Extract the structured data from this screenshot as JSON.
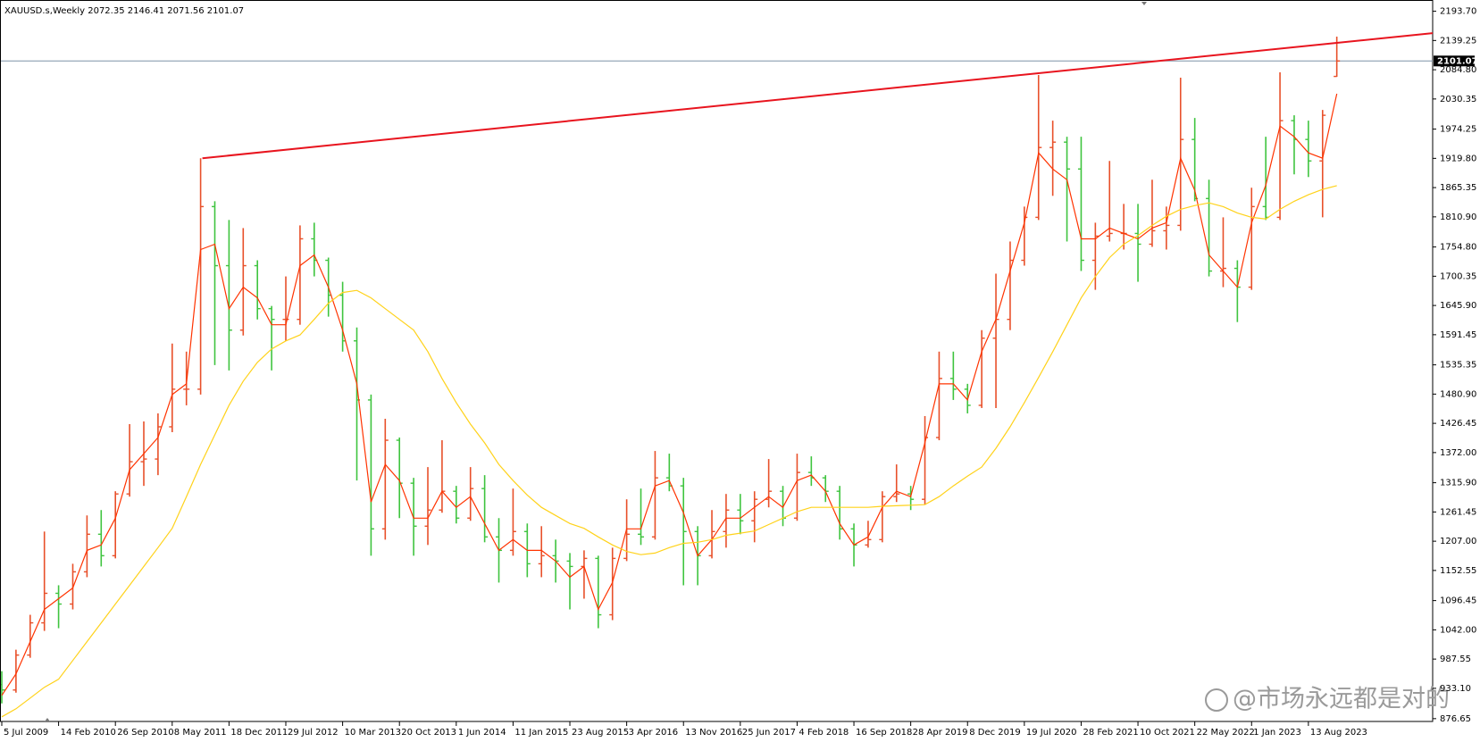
{
  "chart_data": {
    "type": "ohlc",
    "header": "XAUUSD.s,Weekly  2072.35 2146.41 2071.56 2101.07",
    "watermark": "@市场永远都是对的",
    "up_color": "#e8502a",
    "down_color": "#3fc43f",
    "x": [
      "2009-07-05",
      "2009-08-30",
      "2009-10-25",
      "2009-12-20",
      "2010-02-14",
      "2010-04-11",
      "2010-06-06",
      "2010-08-01",
      "2010-09-26",
      "2010-11-21",
      "2011-01-16",
      "2011-03-13",
      "2011-05-08",
      "2011-07-03",
      "2011-08-28",
      "2011-10-23",
      "2011-12-18",
      "2012-02-12",
      "2012-04-08",
      "2012-06-03",
      "2012-07-29",
      "2012-09-23",
      "2012-11-18",
      "2013-01-13",
      "2013-03-10",
      "2013-05-05",
      "2013-06-30",
      "2013-08-25",
      "2013-10-20",
      "2013-12-15",
      "2014-02-09",
      "2014-04-06",
      "2014-06-01",
      "2014-07-27",
      "2014-09-21",
      "2014-11-16",
      "2015-01-11",
      "2015-03-08",
      "2015-05-03",
      "2015-06-28",
      "2015-08-23",
      "2015-10-18",
      "2015-12-13",
      "2016-02-07",
      "2016-04-03",
      "2016-05-29",
      "2016-07-24",
      "2016-09-18",
      "2016-11-13",
      "2017-01-08",
      "2017-03-05",
      "2017-04-30",
      "2017-06-25",
      "2017-08-20",
      "2017-10-15",
      "2017-12-10",
      "2018-02-04",
      "2018-04-01",
      "2018-05-27",
      "2018-07-22",
      "2018-09-16",
      "2018-11-11",
      "2019-01-06",
      "2019-03-03",
      "2019-04-28",
      "2019-06-23",
      "2019-08-18",
      "2019-10-13",
      "2019-12-08",
      "2020-02-02",
      "2020-03-29",
      "2020-05-24",
      "2020-07-19",
      "2020-09-13",
      "2020-11-08",
      "2021-01-03",
      "2021-02-28",
      "2021-04-25",
      "2021-06-20",
      "2021-08-15",
      "2021-10-10",
      "2021-12-05",
      "2022-01-30",
      "2022-03-27",
      "2022-05-22",
      "2022-07-17",
      "2022-09-11",
      "2022-11-06",
      "2023-01-01",
      "2023-02-26",
      "2023-04-23",
      "2023-06-18",
      "2023-08-13",
      "2023-10-08",
      "2023-12-03"
    ],
    "ohlc": [
      [
        940,
        965,
        905,
        930
      ],
      [
        930,
        1005,
        925,
        995
      ],
      [
        995,
        1070,
        990,
        1055
      ],
      [
        1055,
        1225,
        1040,
        1110
      ],
      [
        1110,
        1125,
        1045,
        1090
      ],
      [
        1090,
        1165,
        1080,
        1150
      ],
      [
        1150,
        1255,
        1140,
        1220
      ],
      [
        1220,
        1265,
        1160,
        1180
      ],
      [
        1180,
        1300,
        1175,
        1295
      ],
      [
        1295,
        1425,
        1290,
        1355
      ],
      [
        1355,
        1430,
        1310,
        1360
      ],
      [
        1360,
        1445,
        1330,
        1420
      ],
      [
        1420,
        1575,
        1410,
        1490
      ],
      [
        1490,
        1560,
        1460,
        1490
      ],
      [
        1490,
        1920,
        1480,
        1830
      ],
      [
        1830,
        1840,
        1535,
        1720
      ],
      [
        1720,
        1805,
        1525,
        1600
      ],
      [
        1600,
        1790,
        1590,
        1720
      ],
      [
        1720,
        1730,
        1620,
        1640
      ],
      [
        1640,
        1645,
        1525,
        1620
      ],
      [
        1620,
        1700,
        1580,
        1620
      ],
      [
        1620,
        1795,
        1610,
        1770
      ],
      [
        1770,
        1800,
        1700,
        1730
      ],
      [
        1730,
        1735,
        1625,
        1665
      ],
      [
        1665,
        1690,
        1560,
        1580
      ],
      [
        1580,
        1605,
        1320,
        1470
      ],
      [
        1470,
        1480,
        1180,
        1230
      ],
      [
        1230,
        1435,
        1210,
        1395
      ],
      [
        1395,
        1400,
        1250,
        1315
      ],
      [
        1315,
        1325,
        1180,
        1235
      ],
      [
        1235,
        1345,
        1200,
        1265
      ],
      [
        1265,
        1395,
        1260,
        1300
      ],
      [
        1300,
        1310,
        1240,
        1250
      ],
      [
        1250,
        1345,
        1245,
        1305
      ],
      [
        1305,
        1330,
        1205,
        1215
      ],
      [
        1215,
        1250,
        1130,
        1190
      ],
      [
        1190,
        1305,
        1180,
        1225
      ],
      [
        1225,
        1240,
        1140,
        1165
      ],
      [
        1165,
        1235,
        1140,
        1180
      ],
      [
        1180,
        1210,
        1130,
        1170
      ],
      [
        1170,
        1185,
        1080,
        1160
      ],
      [
        1160,
        1190,
        1100,
        1175
      ],
      [
        1175,
        1180,
        1045,
        1070
      ],
      [
        1070,
        1195,
        1060,
        1175
      ],
      [
        1175,
        1285,
        1170,
        1220
      ],
      [
        1220,
        1305,
        1200,
        1215
      ],
      [
        1215,
        1375,
        1210,
        1325
      ],
      [
        1325,
        1370,
        1300,
        1310
      ],
      [
        1310,
        1325,
        1125,
        1225
      ],
      [
        1225,
        1235,
        1125,
        1180
      ],
      [
        1180,
        1265,
        1175,
        1225
      ],
      [
        1225,
        1295,
        1195,
        1265
      ],
      [
        1265,
        1295,
        1220,
        1245
      ],
      [
        1245,
        1300,
        1205,
        1285
      ],
      [
        1285,
        1360,
        1270,
        1300
      ],
      [
        1300,
        1310,
        1235,
        1250
      ],
      [
        1250,
        1370,
        1245,
        1335
      ],
      [
        1335,
        1365,
        1310,
        1325
      ],
      [
        1325,
        1330,
        1280,
        1300
      ],
      [
        1300,
        1310,
        1210,
        1230
      ],
      [
        1230,
        1240,
        1160,
        1200
      ],
      [
        1200,
        1245,
        1195,
        1210
      ],
      [
        1210,
        1300,
        1205,
        1290
      ],
      [
        1290,
        1350,
        1280,
        1295
      ],
      [
        1295,
        1310,
        1265,
        1285
      ],
      [
        1285,
        1440,
        1275,
        1400
      ],
      [
        1400,
        1560,
        1395,
        1510
      ],
      [
        1510,
        1560,
        1470,
        1490
      ],
      [
        1490,
        1500,
        1445,
        1460
      ],
      [
        1460,
        1600,
        1455,
        1585
      ],
      [
        1585,
        1705,
        1455,
        1620
      ],
      [
        1620,
        1765,
        1600,
        1730
      ],
      [
        1730,
        1830,
        1720,
        1810
      ],
      [
        1810,
        2075,
        1805,
        1940
      ],
      [
        1940,
        1990,
        1850,
        1950
      ],
      [
        1950,
        1960,
        1765,
        1900
      ],
      [
        1900,
        1960,
        1710,
        1730
      ],
      [
        1730,
        1800,
        1675,
        1775
      ],
      [
        1775,
        1915,
        1765,
        1780
      ],
      [
        1780,
        1835,
        1750,
        1780
      ],
      [
        1780,
        1835,
        1690,
        1760
      ],
      [
        1760,
        1880,
        1755,
        1785
      ],
      [
        1785,
        1830,
        1750,
        1795
      ],
      [
        1795,
        2070,
        1785,
        1955
      ],
      [
        1955,
        1995,
        1840,
        1845
      ],
      [
        1845,
        1880,
        1700,
        1710
      ],
      [
        1710,
        1810,
        1680,
        1715
      ],
      [
        1715,
        1730,
        1615,
        1680
      ],
      [
        1680,
        1865,
        1675,
        1830
      ],
      [
        1830,
        1960,
        1805,
        1810
      ],
      [
        1810,
        2080,
        1805,
        1990
      ],
      [
        1990,
        2000,
        1890,
        1955
      ],
      [
        1955,
        1990,
        1885,
        1915
      ],
      [
        1915,
        2010,
        1810,
        2000
      ],
      [
        2072.35,
        2146.41,
        2071.56,
        2101.07
      ]
    ],
    "lines": [
      {
        "color": "#ff3300",
        "values": [
          920,
          960,
          1020,
          1080,
          1100,
          1120,
          1190,
          1200,
          1250,
          1340,
          1370,
          1400,
          1480,
          1500,
          1750,
          1760,
          1640,
          1680,
          1660,
          1610,
          1610,
          1720,
          1740,
          1680,
          1600,
          1500,
          1280,
          1350,
          1320,
          1250,
          1250,
          1300,
          1270,
          1290,
          1240,
          1190,
          1210,
          1190,
          1190,
          1170,
          1140,
          1160,
          1080,
          1130,
          1230,
          1230,
          1310,
          1320,
          1260,
          1180,
          1210,
          1250,
          1250,
          1270,
          1290,
          1270,
          1320,
          1330,
          1300,
          1240,
          1200,
          1215,
          1270,
          1300,
          1290,
          1390,
          1500,
          1500,
          1470,
          1560,
          1620,
          1710,
          1800,
          1930,
          1900,
          1880,
          1770,
          1770,
          1790,
          1780,
          1770,
          1790,
          1800,
          1920,
          1860,
          1740,
          1710,
          1680,
          1800,
          1870,
          1980,
          1960,
          1930,
          1920,
          2040
        ]
      },
      {
        "color": "#ffd21a",
        "values": [
          880,
          895,
          915,
          935,
          950,
          985,
          1020,
          1055,
          1090,
          1125,
          1160,
          1195,
          1231,
          1290,
          1350,
          1405,
          1460,
          1505,
          1540,
          1565,
          1580,
          1591,
          1620,
          1650,
          1670,
          1674,
          1660,
          1640,
          1620,
          1600,
          1560,
          1510,
          1465,
          1425,
          1390,
          1350,
          1320,
          1293,
          1270,
          1255,
          1240,
          1231,
          1215,
          1200,
          1188,
          1182,
          1185,
          1195,
          1203,
          1205,
          1210,
          1218,
          1222,
          1226,
          1238,
          1250,
          1262,
          1270,
          1270,
          1270,
          1270,
          1270,
          1272,
          1273,
          1274,
          1275,
          1290,
          1310,
          1328,
          1345,
          1380,
          1420,
          1465,
          1512,
          1560,
          1610,
          1660,
          1700,
          1735,
          1760,
          1776,
          1795,
          1812,
          1825,
          1832,
          1837,
          1830,
          1818,
          1810,
          1807,
          1825,
          1840,
          1852,
          1862,
          1869
        ]
      }
    ],
    "trendline": {
      "color": "#e8141e",
      "x": [
        "2011-09-04",
        "2024-12-15"
      ],
      "values": [
        1920,
        2153
      ]
    },
    "hline": {
      "color": "#7f93a8",
      "value": 2101.07
    },
    "xlim": [
      "2009-06-28",
      "2024-12-15"
    ],
    "ylim": [
      871.4,
      2211.3
    ],
    "xticks": [
      {
        "value": "2009-07-05",
        "label": "5 Jul 2009"
      },
      {
        "value": "2010-02-14",
        "label": "14 Feb 2010"
      },
      {
        "value": "2010-09-26",
        "label": "26 Sep 2010"
      },
      {
        "value": "2011-05-08",
        "label": "8 May 2011"
      },
      {
        "value": "2011-12-18",
        "label": "18 Dec 2011"
      },
      {
        "value": "2012-07-29",
        "label": "29 Jul 2012"
      },
      {
        "value": "2013-03-10",
        "label": "10 Mar 2013"
      },
      {
        "value": "2013-10-20",
        "label": "20 Oct 2013"
      },
      {
        "value": "2014-06-01",
        "label": "1 Jun 2014"
      },
      {
        "value": "2015-01-11",
        "label": "11 Jan 2015"
      },
      {
        "value": "2015-08-23",
        "label": "23 Aug 2015"
      },
      {
        "value": "2016-04-03",
        "label": "3 Apr 2016"
      },
      {
        "value": "2016-11-13",
        "label": "13 Nov 2016"
      },
      {
        "value": "2017-06-25",
        "label": "25 Jun 2017"
      },
      {
        "value": "2018-02-04",
        "label": "4 Feb 2018"
      },
      {
        "value": "2018-09-16",
        "label": "16 Sep 2018"
      },
      {
        "value": "2019-04-28",
        "label": "28 Apr 2019"
      },
      {
        "value": "2019-12-08",
        "label": "8 Dec 2019"
      },
      {
        "value": "2020-07-19",
        "label": "19 Jul 2020"
      },
      {
        "value": "2021-02-28",
        "label": "28 Feb 2021"
      },
      {
        "value": "2021-10-10",
        "label": "10 Oct 2021"
      },
      {
        "value": "2022-05-22",
        "label": "22 May 2022"
      },
      {
        "value": "2023-01-01",
        "label": "1 Jan 2023"
      },
      {
        "value": "2023-08-13",
        "label": "13 Aug 2023"
      }
    ],
    "yticks": [
      {
        "value": 2193.7,
        "label": "2193.70"
      },
      2139.25,
      {
        "value": 2084.8,
        "label": "2084.80"
      },
      2030.35,
      1974.25,
      {
        "value": 1919.8,
        "label": "1919.80"
      },
      1865.35,
      {
        "value": 1810.9,
        "label": "1810.90"
      },
      {
        "value": 1754.8,
        "label": "1754.80"
      },
      1700.35,
      {
        "value": 1645.9,
        "label": "1645.90"
      },
      1591.45,
      1535.35,
      {
        "value": 1480.9,
        "label": "1480.90"
      },
      1426.45,
      {
        "value": 1372,
        "label": "1372.00"
      },
      {
        "value": 1315.9,
        "label": "1315.90"
      },
      1261.45,
      {
        "value": 1207,
        "label": "1207.00"
      },
      1152.55,
      1096.45,
      {
        "value": 1042,
        "label": "1042.00"
      },
      987.55,
      {
        "value": 933.1,
        "label": "933.10"
      },
      876.65
    ]
  }
}
